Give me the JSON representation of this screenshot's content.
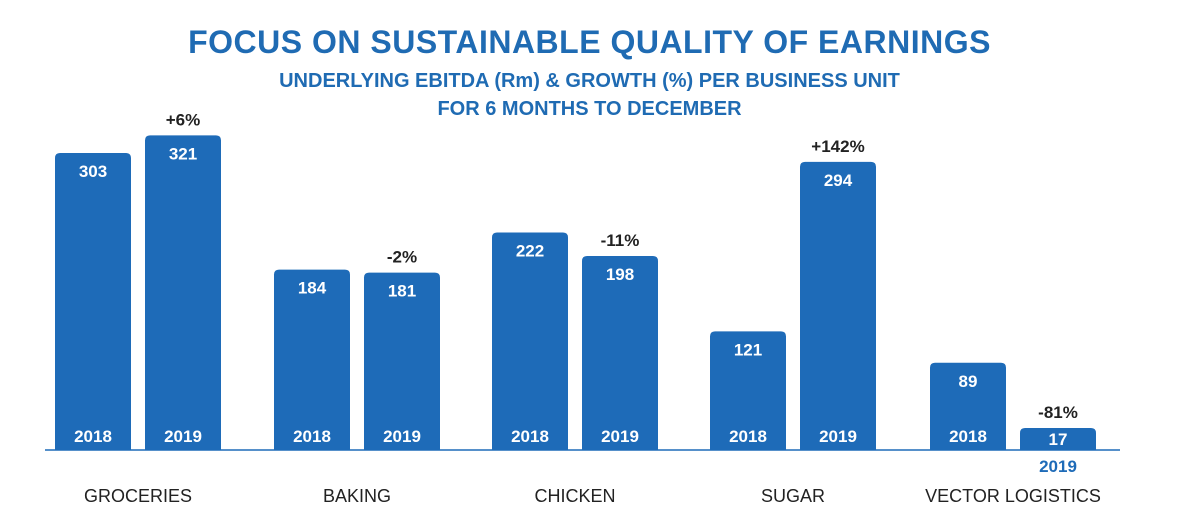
{
  "chart_data": {
    "type": "bar",
    "title": "FOCUS ON SUSTAINABLE QUALITY OF EARNINGS",
    "subtitle_line1": "UNDERLYING EBITDA (Rm) & GROWTH (%) PER BUSINESS UNIT",
    "subtitle_line2": "FOR 6 MONTHS TO DECEMBER",
    "colors": {
      "bar": "#1e6bb8",
      "title": "#1f6bb3"
    },
    "series_labels": [
      "2018",
      "2019"
    ],
    "categories": [
      "GROCERIES",
      "BAKING",
      "CHICKEN",
      "SUGAR",
      "VECTOR LOGISTICS"
    ],
    "series": [
      {
        "values": [
          303,
          184,
          222,
          121,
          89
        ]
      },
      {
        "values": [
          321,
          181,
          198,
          294,
          17
        ]
      }
    ],
    "growth": [
      "+6%",
      "-2%",
      "-11%",
      "+142%",
      "-81%"
    ],
    "grid": false
  }
}
